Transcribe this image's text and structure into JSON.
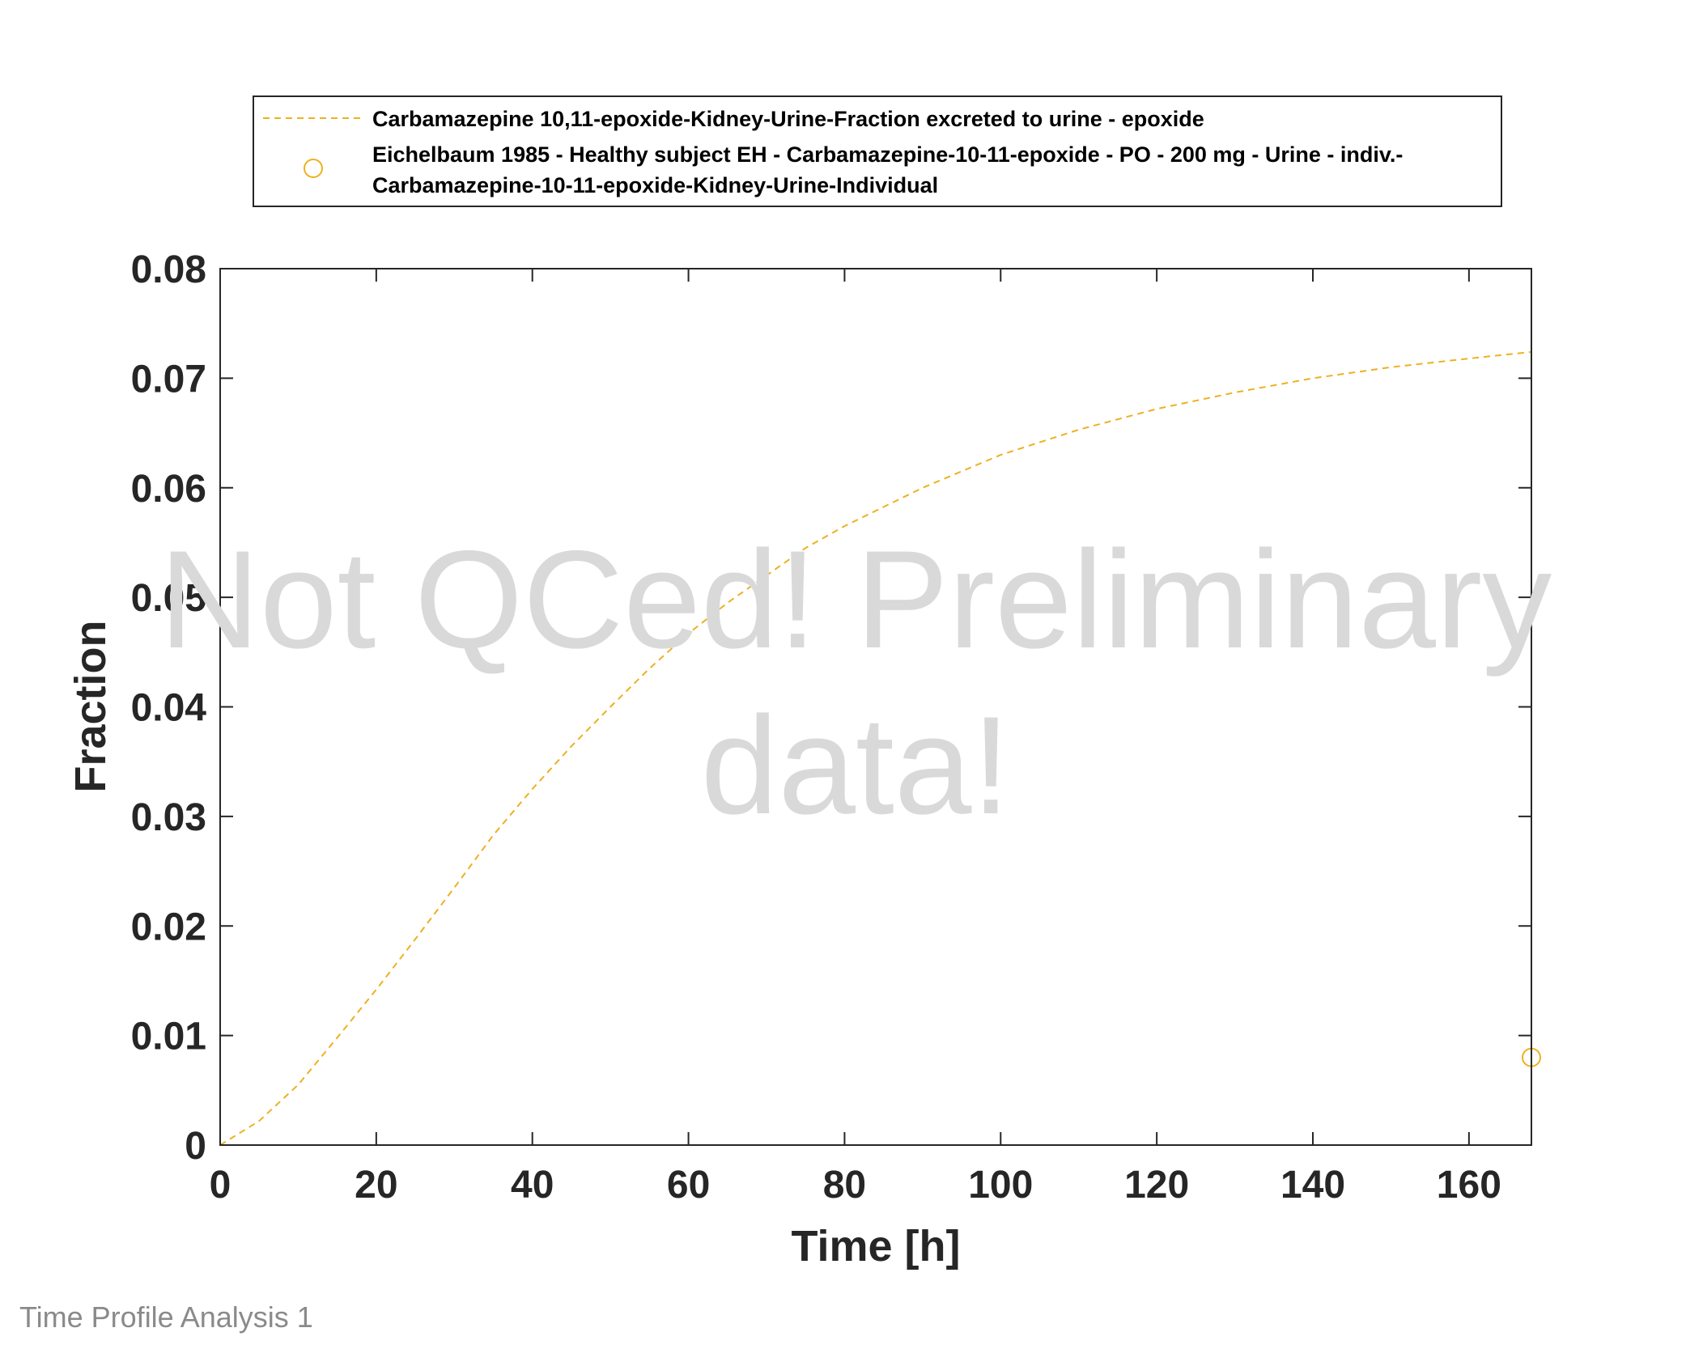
{
  "chart_data": {
    "type": "line",
    "xlabel": "Time [h]",
    "ylabel": "Fraction",
    "xlim": [
      0,
      168
    ],
    "ylim": [
      0,
      0.08
    ],
    "xticks": [
      0,
      20,
      40,
      60,
      80,
      100,
      120,
      140,
      160
    ],
    "yticks": [
      0,
      0.01,
      0.02,
      0.03,
      0.04,
      0.05,
      0.06,
      0.07,
      0.08
    ],
    "grid": false,
    "legend_position": "top",
    "series": [
      {
        "name": "Carbamazepine 10,11-epoxide-Kidney-Urine-Fraction excreted to urine - epoxide",
        "style": "dashed-line",
        "color": "#EDB120",
        "x": [
          0,
          5,
          10,
          15,
          20,
          25,
          30,
          35,
          40,
          45,
          50,
          55,
          60,
          65,
          70,
          75,
          80,
          90,
          100,
          110,
          120,
          130,
          140,
          150,
          160,
          168
        ],
        "y": [
          0,
          0.0022,
          0.0055,
          0.0098,
          0.0142,
          0.0188,
          0.0235,
          0.0283,
          0.0325,
          0.0364,
          0.04,
          0.0435,
          0.0467,
          0.0495,
          0.052,
          0.0545,
          0.0565,
          0.06,
          0.063,
          0.0653,
          0.0672,
          0.0687,
          0.07,
          0.071,
          0.0718,
          0.0724
        ]
      },
      {
        "name_lines": [
          "Eichelbaum 1985 - Healthy subject EH - Carbamazepine-10-11-epoxide - PO - 200 mg - Urine - indiv.-",
          "Carbamazepine-10-11-epoxide-Kidney-Urine-Individual"
        ],
        "style": "circle-marker",
        "color": "#EDB120",
        "x": [
          168
        ],
        "y": [
          0.008
        ]
      }
    ]
  },
  "watermark": [
    "Not QCed! Preliminary",
    "data!"
  ],
  "footer": "Time Profile Analysis 1"
}
